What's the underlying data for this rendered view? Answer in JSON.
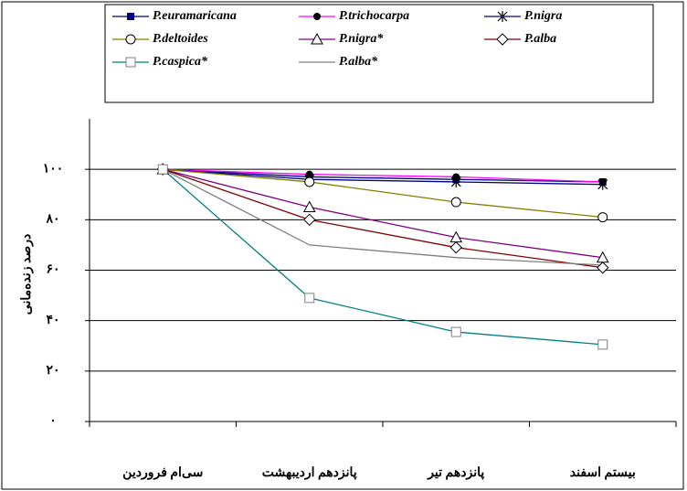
{
  "chart_data": {
    "type": "line",
    "ylabel": "درصد زنده‌مانی",
    "categories": [
      "سی‌ام فروردین",
      "پانزدهم اردیبهشت",
      "پانزدهم تیر",
      "بیستم اسفند"
    ],
    "ylim": [
      0,
      120
    ],
    "yticks": [
      {
        "value": 0,
        "label": "۰"
      },
      {
        "value": 20,
        "label": "۲۰"
      },
      {
        "value": 40,
        "label": "۴۰"
      },
      {
        "value": 60,
        "label": "۶۰"
      },
      {
        "value": 80,
        "label": "۸۰"
      },
      {
        "value": 100,
        "label": "۱۰۰"
      }
    ],
    "grid": true,
    "legend": "top",
    "series": [
      {
        "name": "P.euramaricana",
        "color": "#000080",
        "marker": "square",
        "marker_color": "#000080",
        "values": [
          100,
          97,
          96,
          95
        ]
      },
      {
        "name": "P.trichocarpa",
        "color": "#ff00ff",
        "marker": "circle",
        "marker_color": "#000000",
        "values": [
          100,
          98,
          97,
          95
        ]
      },
      {
        "name": "P.nigra",
        "color": "#000080",
        "marker": "star",
        "marker_color": "#000000",
        "values": [
          100,
          96,
          95,
          94
        ]
      },
      {
        "name": "P.deltoides",
        "color": "#808000",
        "marker": "open-circle",
        "marker_color": "#000000",
        "values": [
          100,
          95,
          87,
          81
        ]
      },
      {
        "name": "P.nigra*",
        "color": "#800080",
        "marker": "open-triangle",
        "marker_color": "#000000",
        "values": [
          100,
          85,
          73,
          65
        ]
      },
      {
        "name": "P.alba",
        "color": "#800000",
        "marker": "open-diamond",
        "marker_color": "#000000",
        "values": [
          100,
          80,
          69,
          61
        ]
      },
      {
        "name": "P.caspica*",
        "color": "#008080",
        "marker": "open-square",
        "marker_color": "#808080",
        "values": [
          100,
          49,
          35.5,
          30.5
        ]
      },
      {
        "name": "P.alba*",
        "color": "#808080",
        "values": [
          100,
          70,
          65,
          62
        ]
      }
    ]
  }
}
